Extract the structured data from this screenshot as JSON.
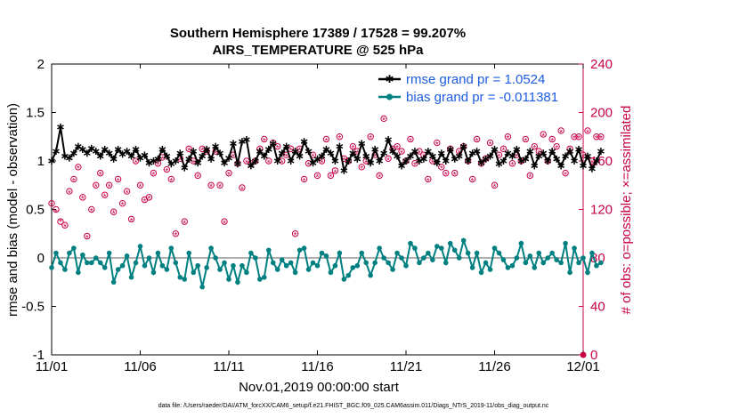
{
  "chart_data": {
    "type": "line",
    "title": "Southern Hemisphere 17389 / 17528 = 99.207%",
    "subtitle": "AIRS_TEMPERATURE @ 525 hPa",
    "xlabel": "Nov.01,2019 00:00:00 start",
    "ylabel": "rmse and bias (model - observation)",
    "ylabel_right": "# of obs: o=possible; ×=assimilated",
    "xlim": [
      0,
      30
    ],
    "ylim": [
      -1,
      2
    ],
    "ylim_right": [
      0,
      240
    ],
    "x_tick_values": [
      0,
      5,
      10,
      15,
      20,
      25,
      30
    ],
    "x_tick_labels": [
      "11/01",
      "11/06",
      "11/11",
      "11/16",
      "11/21",
      "11/26",
      "12/01"
    ],
    "y_ticks": [
      "-1",
      "-0.5",
      "0",
      "0.5",
      "1",
      "1.5",
      "2"
    ],
    "y_ticks_right": [
      "0",
      "40",
      "80",
      "120",
      "160",
      "200",
      "240"
    ],
    "legend": [
      "rmse grand pr = 1.0524",
      "bias grand pr = -0.011381"
    ],
    "legend_position": "top-right",
    "zero_line": 0,
    "points_per_day": 4,
    "series": [
      {
        "name": "rmse",
        "color": "#000000",
        "marker": "asterisk",
        "values": [
          1.0,
          1.1,
          1.35,
          1.05,
          1.03,
          1.08,
          1.15,
          1.12,
          1.08,
          1.13,
          1.1,
          1.05,
          1.12,
          1.08,
          1.02,
          1.12,
          1.07,
          1.1,
          1.05,
          1.12,
          1.03,
          1.06,
          0.98,
          1.0,
          1.02,
          1.12,
          1.05,
          0.97,
          1.0,
          1.08,
          0.93,
          1.02,
          1.1,
          0.98,
          1.05,
          1.12,
          1.02,
          1.15,
          1.08,
          0.98,
          1.03,
          1.18,
          0.97,
          1.2,
          1.22,
          0.95,
          1.0,
          1.1,
          1.05,
          1.12,
          1.18,
          1.0,
          1.08,
          1.15,
          1.0,
          1.1,
          1.05,
          1.2,
          1.1,
          0.98,
          1.02,
          1.05,
          1.12,
          1.08,
          1.0,
          1.15,
          0.9,
          1.0,
          1.08,
          1.02,
          1.18,
          1.05,
          0.98,
          1.12,
          1.0,
          1.08,
          1.22,
          1.1,
          1.05,
          0.95,
          1.0,
          1.05,
          1.1,
          1.0,
          1.02,
          1.1,
          1.05,
          0.98,
          1.08,
          1.0,
          1.12,
          1.02,
          1.05,
          1.15,
          1.0,
          1.08,
          1.1,
          0.98,
          1.02,
          1.05,
          1.12,
          0.97,
          1.0,
          1.08,
          1.05,
          1.12,
          1.0,
          1.02,
          1.1,
          0.95,
          1.05,
          1.08,
          1.0,
          1.1,
          1.02,
          0.95,
          1.05,
          1.1,
          1.0,
          1.12,
          0.95,
          1.05,
          0.92,
          1.0,
          1.1
        ]
      },
      {
        "name": "bias",
        "color": "#008080",
        "marker": "dot",
        "values": [
          -0.1,
          0.05,
          -0.05,
          -0.12,
          0.05,
          0.1,
          -0.15,
          0.03,
          -0.05,
          -0.05,
          0.0,
          -0.05,
          -0.1,
          0.05,
          -0.25,
          -0.12,
          -0.08,
          0.02,
          -0.2,
          -0.05,
          0.12,
          -0.08,
          0.0,
          -0.15,
          0.05,
          -0.08,
          -0.12,
          0.1,
          -0.05,
          -0.2,
          -0.22,
          0.05,
          -0.15,
          -0.08,
          -0.3,
          -0.1,
          0.1,
          0.0,
          -0.12,
          -0.05,
          -0.22,
          -0.08,
          -0.25,
          -0.08,
          -0.15,
          0.05,
          0.0,
          -0.22,
          -0.2,
          0.08,
          -0.05,
          -0.12,
          -0.02,
          -0.08,
          -0.05,
          -0.15,
          0.08,
          0.1,
          -0.12,
          -0.05,
          -0.08,
          0.05,
          0.02,
          -0.15,
          -0.08,
          0.05,
          -0.22,
          -0.18,
          -0.1,
          -0.08,
          0.05,
          -0.05,
          -0.18,
          -0.05,
          0.1,
          0.0,
          -0.05,
          -0.12,
          0.05,
          0.0,
          -0.08,
          0.15,
          0.1,
          -0.05,
          0.0,
          0.05,
          -0.02,
          0.12,
          0.1,
          -0.05,
          0.15,
          0.08,
          0.0,
          0.18,
          0.05,
          -0.1,
          0.05,
          -0.15,
          -0.05,
          -0.12,
          0.1,
          0.05,
          -0.02,
          -0.1,
          -0.08,
          0.0,
          0.15,
          -0.05,
          0.02,
          -0.1,
          0.05,
          -0.05,
          0.0,
          0.05,
          -0.02,
          -0.05,
          0.15,
          -0.15,
          0.1,
          -0.05,
          0.0,
          -0.15,
          0.05,
          -0.08,
          -0.05
        ]
      },
      {
        "name": "obs possible",
        "color": "#c8004a",
        "marker": "circle",
        "axis": "right",
        "values": [
          125,
          120,
          110,
          107,
          135,
          145,
          155,
          130,
          98,
          120,
          140,
          150,
          132,
          140,
          118,
          145,
          125,
          135,
          112,
          160,
          140,
          128,
          130,
          150,
          158,
          163,
          153,
          145,
          100,
          162,
          110,
          170,
          160,
          148,
          170,
          168,
          140,
          168,
          140,
          110,
          150,
          165,
          158,
          138,
          160,
          158,
          160,
          170,
          178,
          160,
          175,
          172,
          160,
          165,
          170,
          100,
          170,
          145,
          158,
          165,
          148,
          160,
          178,
          148,
          152,
          180,
          162,
          160,
          172,
          168,
          155,
          160,
          180,
          165,
          148,
          195,
          162,
          170,
          172,
          168,
          160,
          178,
          158,
          168,
          165,
          145,
          160,
          175,
          155,
          150,
          170,
          150,
          168,
          172,
          160,
          145,
          178,
          158,
          162,
          175,
          140,
          165,
          170,
          180,
          158,
          165,
          160,
          178,
          148,
          172,
          168,
          182,
          160,
          178,
          172,
          185,
          150,
          170,
          180,
          180,
          165,
          185,
          160,
          180,
          180
        ]
      },
      {
        "name": "obs assimilated",
        "color": "#c8004a",
        "marker": "cross",
        "axis": "right",
        "values": [
          124,
          118,
          110,
          106,
          134,
          144,
          154,
          129,
          97,
          119,
          139,
          149,
          131,
          139,
          117,
          144,
          124,
          134,
          111,
          159,
          139,
          127,
          129,
          149,
          157,
          162,
          152,
          144,
          99,
          161,
          109,
          169,
          159,
          147,
          169,
          167,
          139,
          167,
          139,
          109,
          149,
          164,
          157,
          137,
          159,
          157,
          159,
          169,
          177,
          159,
          174,
          171,
          159,
          164,
          169,
          99,
          169,
          144,
          157,
          164,
          147,
          159,
          177,
          147,
          151,
          179,
          161,
          159,
          171,
          167,
          154,
          159,
          179,
          164,
          147,
          194,
          161,
          169,
          171,
          167,
          159,
          177,
          157,
          167,
          164,
          144,
          159,
          174,
          154,
          149,
          169,
          149,
          167,
          171,
          159,
          144,
          177,
          157,
          161,
          174,
          139,
          164,
          169,
          179,
          157,
          164,
          159,
          177,
          147,
          171,
          167,
          181,
          159,
          177,
          171,
          184,
          149,
          169,
          179,
          179,
          164,
          184,
          159,
          179,
          179
        ]
      }
    ]
  },
  "footer": "data file: /Users/raeder/DAI/ATM_forcXX/CAM6_setup/f.e21.FHIST_BGC.f09_025.CAM6assim.011/Diags_NTrS_2019-11/obs_diag_output.nc"
}
